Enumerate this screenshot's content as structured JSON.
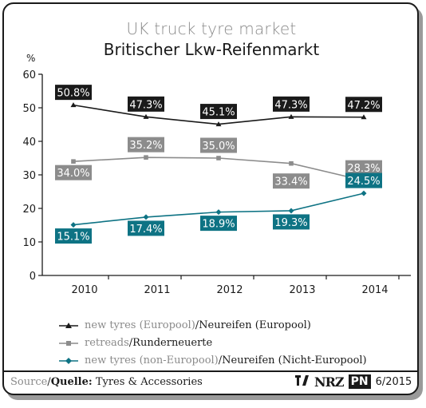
{
  "chart_data": {
    "type": "line",
    "title": "UK truck tyre market",
    "subtitle": "Britischer Lkw-Reifenmarkt",
    "ylabel": "%",
    "xlabel": "",
    "categories": [
      "2010",
      "2011",
      "2012",
      "2013",
      "2014"
    ],
    "ylim": [
      0,
      60
    ],
    "yticks": [
      0,
      10,
      20,
      30,
      40,
      50,
      60
    ],
    "grid": false,
    "legend_position": "bottom",
    "series": [
      {
        "key": "europool",
        "name_gray": "new tyres (Europool)",
        "name_black": "/Neureifen (Europool)",
        "values": [
          50.8,
          47.3,
          45.1,
          47.3,
          47.2
        ],
        "value_labels": [
          "50.8%",
          "47.3%",
          "45.1%",
          "47.3%",
          "47.2%"
        ],
        "color": "#1a1a1a",
        "marker": "triangle"
      },
      {
        "key": "retreads",
        "name_gray": "retreads",
        "name_black": "/Runderneuerte",
        "values": [
          34.0,
          35.2,
          35.0,
          33.4,
          28.3
        ],
        "value_labels": [
          "34.0%",
          "35.2%",
          "35.0%",
          "33.4%",
          "28.3%"
        ],
        "color": "#8c8c8c",
        "marker": "square"
      },
      {
        "key": "non_europool",
        "name_gray": "new tyres (non-Europool)",
        "name_black": "/Neureifen (Nicht-Europool)",
        "values": [
          15.1,
          17.4,
          18.9,
          19.3,
          24.5
        ],
        "value_labels": [
          "15.1%",
          "17.4%",
          "18.9%",
          "19.3%",
          "24.5%"
        ],
        "color": "#0e7384",
        "marker": "diamond"
      }
    ]
  },
  "footer": {
    "source_label_en": "Source",
    "source_sep": "/",
    "source_label_de": "Quelle:",
    "source_value": "Tyres & Accessories",
    "logo_nrz": "NRZ",
    "logo_pn": "PN",
    "issue": "6/2015"
  }
}
